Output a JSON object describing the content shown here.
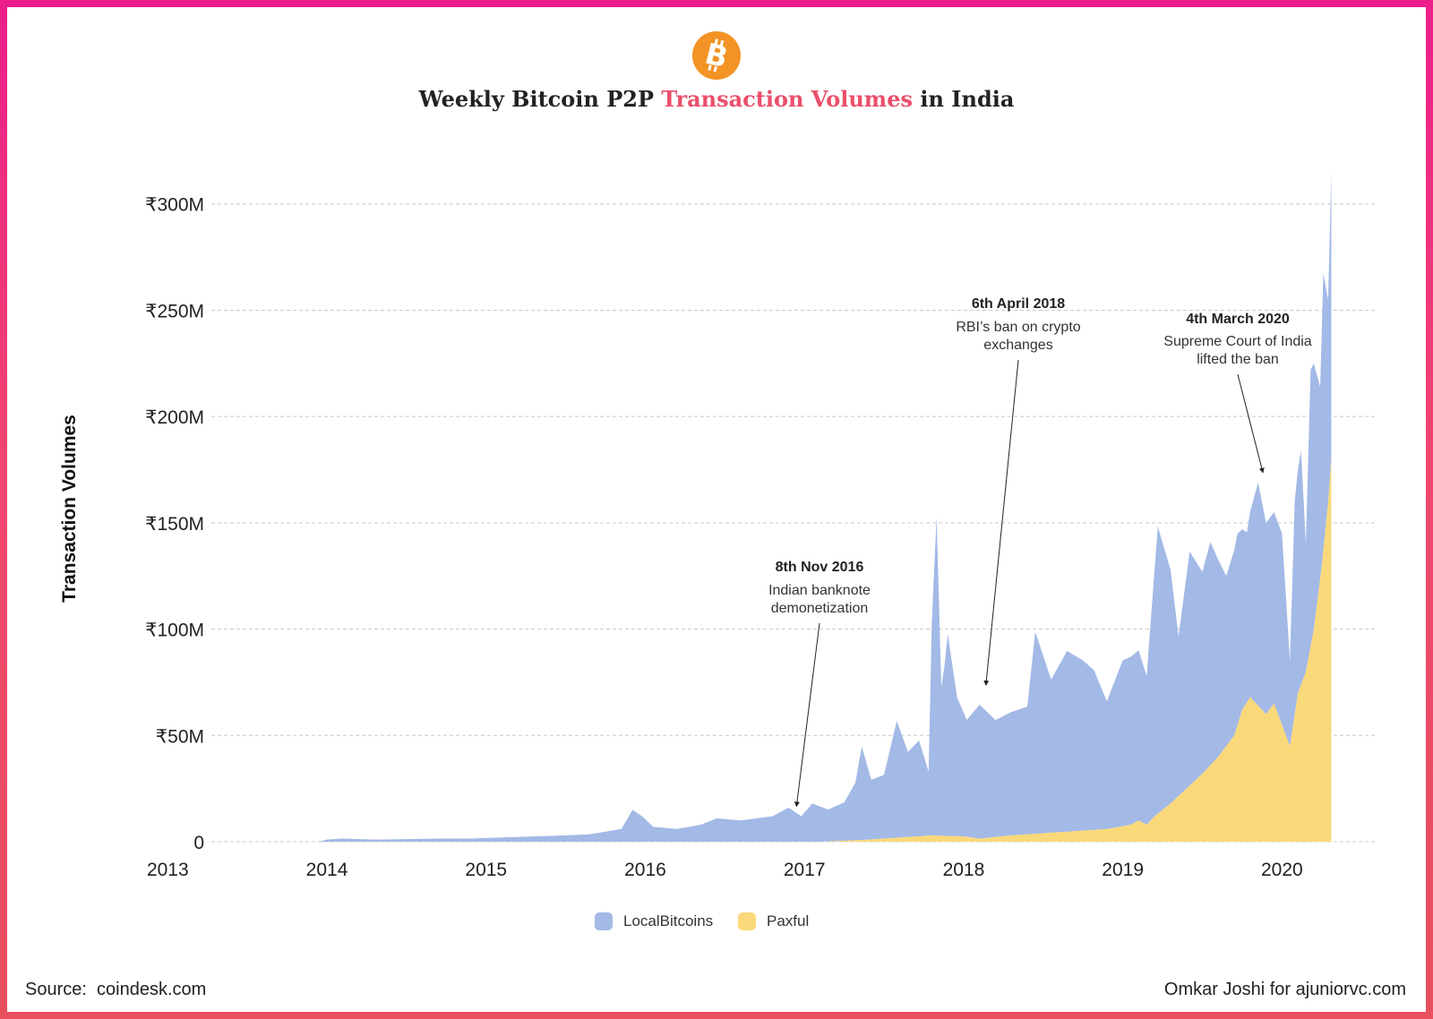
{
  "title": {
    "part1": "Weekly Bitcoin P2P ",
    "highlight": "Transaction Volumes",
    "part2": " in India"
  },
  "colors": {
    "localbitcoins": "#a3b9e6",
    "paxful": "#fad97a",
    "title_highlight": "#ea4f6a",
    "logo": "#f39325",
    "frame": "#ec1e8c"
  },
  "logo_icon": "bitcoin-icon",
  "footer": {
    "source": "Source:  coindesk.com",
    "credit": "Omkar Joshi for ajuniorvc.com"
  },
  "chart_data": {
    "type": "area",
    "stacked": true,
    "ylabel": "Transaction Volumes",
    "xlabel": "",
    "ylim": [
      0,
      310
    ],
    "y_unit": "₹M",
    "yticks": [
      {
        "value": 0,
        "label": "0"
      },
      {
        "value": 50,
        "label": "₹50M"
      },
      {
        "value": 100,
        "label": "₹100M"
      },
      {
        "value": 150,
        "label": "₹150M"
      },
      {
        "value": 200,
        "label": "₹200M"
      },
      {
        "value": 250,
        "label": "₹250M"
      },
      {
        "value": 300,
        "label": "₹300M"
      }
    ],
    "xticks": [
      "2013",
      "2014",
      "2015",
      "2016",
      "2017",
      "2018",
      "2019",
      "2020"
    ],
    "xlim": [
      2012.6,
      2020.5
    ],
    "grid": true,
    "legend": "bottom",
    "series": [
      {
        "name": "LocalBitcoins",
        "color": "#a3b9e6",
        "points": [
          [
            2013.85,
            0
          ],
          [
            2013.9,
            1
          ],
          [
            2014.0,
            1.5
          ],
          [
            2014.2,
            1
          ],
          [
            2014.4,
            1.2
          ],
          [
            2014.6,
            1.5
          ],
          [
            2014.8,
            1.5
          ],
          [
            2015.0,
            2
          ],
          [
            2015.2,
            2.5
          ],
          [
            2015.4,
            3
          ],
          [
            2015.55,
            3.5
          ],
          [
            2015.75,
            6
          ],
          [
            2015.82,
            15
          ],
          [
            2015.88,
            12
          ],
          [
            2015.95,
            7
          ],
          [
            2016.1,
            6
          ],
          [
            2016.25,
            8
          ],
          [
            2016.35,
            11
          ],
          [
            2016.5,
            10
          ],
          [
            2016.6,
            11
          ],
          [
            2016.7,
            12
          ],
          [
            2016.8,
            16
          ],
          [
            2016.88,
            12
          ],
          [
            2016.95,
            18
          ],
          [
            2017.05,
            15
          ],
          [
            2017.15,
            18
          ],
          [
            2017.22,
            27
          ],
          [
            2017.26,
            44
          ],
          [
            2017.32,
            28
          ],
          [
            2017.4,
            30
          ],
          [
            2017.48,
            55
          ],
          [
            2017.55,
            40
          ],
          [
            2017.62,
            45
          ],
          [
            2017.68,
            30
          ],
          [
            2017.7,
            100
          ],
          [
            2017.73,
            150
          ],
          [
            2017.76,
            70
          ],
          [
            2017.78,
            80
          ],
          [
            2017.8,
            95
          ],
          [
            2017.86,
            65
          ],
          [
            2017.92,
            55
          ],
          [
            2018.0,
            63
          ],
          [
            2018.1,
            55
          ],
          [
            2018.2,
            58
          ],
          [
            2018.3,
            60
          ],
          [
            2018.35,
            95
          ],
          [
            2018.45,
            72
          ],
          [
            2018.55,
            85
          ],
          [
            2018.65,
            80
          ],
          [
            2018.72,
            75
          ],
          [
            2018.8,
            60
          ],
          [
            2018.9,
            78
          ],
          [
            2019.0,
            80
          ],
          [
            2019.05,
            70
          ],
          [
            2019.12,
            135
          ],
          [
            2019.2,
            110
          ],
          [
            2019.25,
            75
          ],
          [
            2019.32,
            110
          ],
          [
            2019.4,
            95
          ],
          [
            2019.45,
            105
          ],
          [
            2019.55,
            80
          ],
          [
            2019.62,
            90
          ],
          [
            2019.68,
            80
          ],
          [
            2019.75,
            105
          ],
          [
            2019.8,
            90
          ],
          [
            2019.9,
            90
          ],
          [
            2019.95,
            40
          ],
          [
            2019.98,
            100
          ],
          [
            2020.02,
            110
          ],
          [
            2020.05,
            60
          ],
          [
            2020.08,
            130
          ],
          [
            2020.1,
            125
          ],
          [
            2020.14,
            90
          ],
          [
            2020.16,
            130
          ],
          [
            2020.19,
            95
          ],
          [
            2020.21,
            135
          ]
        ]
      },
      {
        "name": "Paxful",
        "color": "#fad97a",
        "points": [
          [
            2017.0,
            0
          ],
          [
            2017.3,
            1
          ],
          [
            2017.5,
            2
          ],
          [
            2017.7,
            3
          ],
          [
            2017.9,
            2.5
          ],
          [
            2018.0,
            1.5
          ],
          [
            2018.2,
            3
          ],
          [
            2018.4,
            4
          ],
          [
            2018.6,
            5
          ],
          [
            2018.8,
            6
          ],
          [
            2018.95,
            8
          ],
          [
            2019.0,
            10
          ],
          [
            2019.05,
            8
          ],
          [
            2019.1,
            12
          ],
          [
            2019.2,
            18
          ],
          [
            2019.3,
            25
          ],
          [
            2019.4,
            32
          ],
          [
            2019.5,
            40
          ],
          [
            2019.6,
            50
          ],
          [
            2019.65,
            62
          ],
          [
            2019.7,
            68
          ],
          [
            2019.8,
            60
          ],
          [
            2019.85,
            65
          ],
          [
            2019.9,
            55
          ],
          [
            2019.95,
            45
          ],
          [
            2020.0,
            70
          ],
          [
            2020.05,
            80
          ],
          [
            2020.1,
            100
          ],
          [
            2020.15,
            130
          ],
          [
            2020.19,
            160
          ],
          [
            2020.21,
            180
          ]
        ]
      }
    ],
    "annotations": [
      {
        "date": "8th Nov 2016",
        "text": [
          "Indian banknote",
          "demonetization"
        ],
        "x": 2016.85,
        "y": 15
      },
      {
        "date": "6th April 2018",
        "text": [
          "RBI’s ban on crypto",
          "exchanges"
        ],
        "x": 2018.04,
        "y": 72
      },
      {
        "date": "4th March 2020",
        "text": [
          "Supreme Court of India",
          "lifted the ban"
        ],
        "x": 2019.78,
        "y": 172
      }
    ]
  }
}
